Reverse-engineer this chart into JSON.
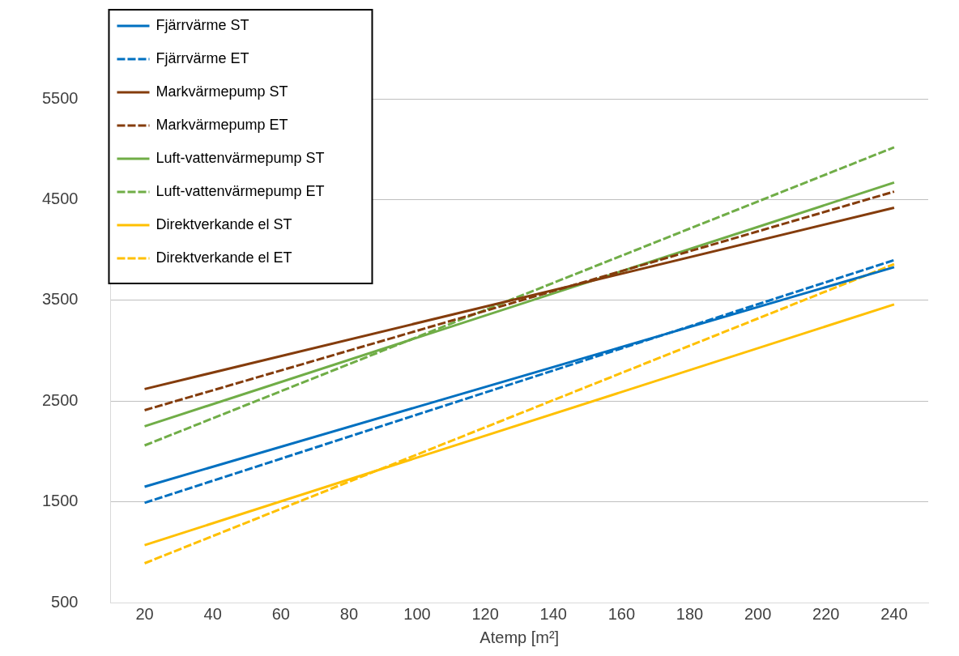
{
  "chart_data": {
    "type": "line",
    "xlabel": "Atemp [m²]",
    "x": [
      20,
      240
    ],
    "xlim": [
      10,
      250
    ],
    "xticks": [
      20,
      40,
      60,
      80,
      100,
      120,
      140,
      160,
      180,
      200,
      220,
      240
    ],
    "ylim": [
      500,
      6000
    ],
    "yticks": [
      500,
      1500,
      2500,
      3500,
      4500,
      5500
    ],
    "grid": "y",
    "legend": "top left",
    "marker": "none",
    "series": [
      {
        "name": "Fjärrvärme ST",
        "color": "#0070c0",
        "values": [
          1650,
          3830
        ],
        "line_style": "solid"
      },
      {
        "name": "Fjärrvärme ET",
        "color": "#0070c0",
        "values": [
          1490,
          3900
        ],
        "line_style": "dashed"
      },
      {
        "name": "Markvärmepump ST",
        "color": "#843c0c",
        "values": [
          2620,
          4420
        ],
        "line_style": "solid"
      },
      {
        "name": "Markvärmepump ET",
        "color": "#843c0c",
        "values": [
          2410,
          4580
        ],
        "line_style": "dashed"
      },
      {
        "name": "Luft-vattenvärmepump ST",
        "color": "#70ad47",
        "values": [
          2250,
          4670
        ],
        "line_style": "solid"
      },
      {
        "name": "Luft-vattenvärmepump ET",
        "color": "#70ad47",
        "values": [
          2060,
          5020
        ],
        "line_style": "dashed"
      },
      {
        "name": "Direktverkande el ST",
        "color": "#ffc000",
        "values": [
          1070,
          3460
        ],
        "line_style": "solid"
      },
      {
        "name": "Direktverkande el ET",
        "color": "#ffc000",
        "values": [
          890,
          3860
        ],
        "line_style": "dashed"
      }
    ]
  }
}
